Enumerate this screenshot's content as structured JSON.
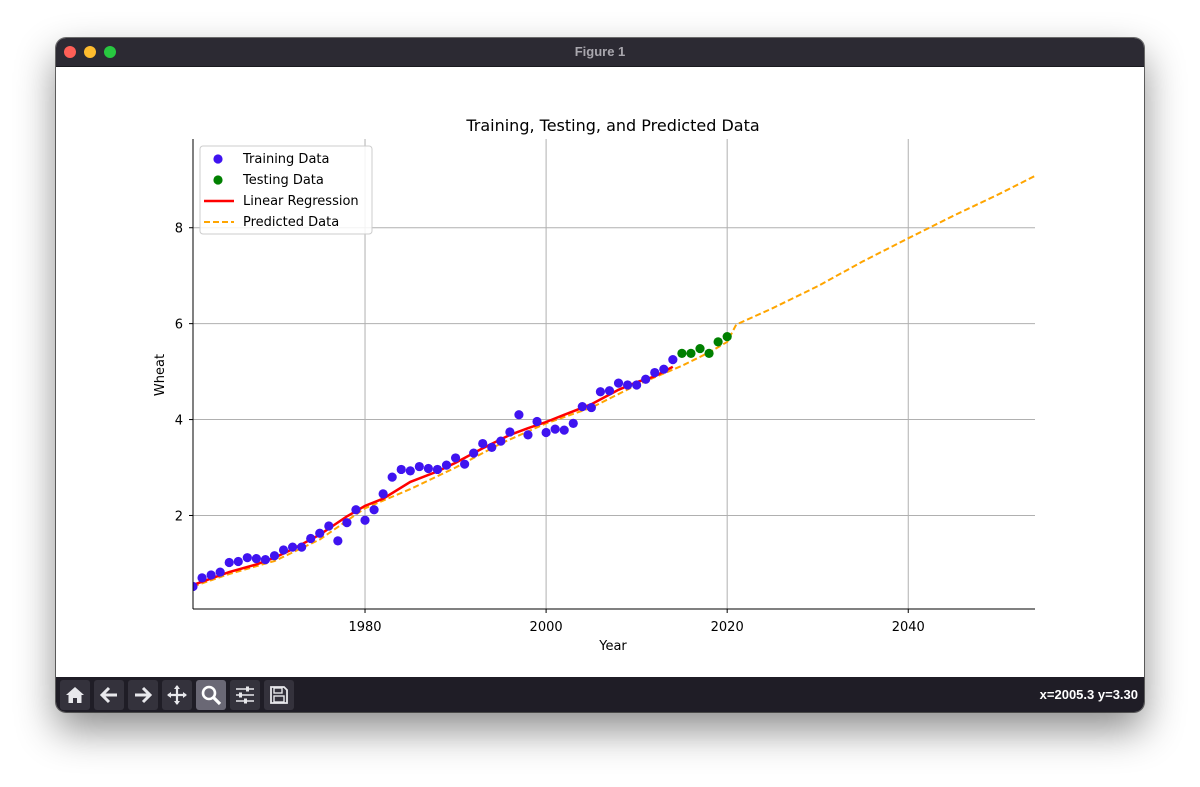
{
  "window": {
    "title": "Figure 1"
  },
  "toolbar": {
    "tools": [
      {
        "name": "home-icon"
      },
      {
        "name": "back-arrow-icon"
      },
      {
        "name": "forward-arrow-icon"
      },
      {
        "name": "pan-icon"
      },
      {
        "name": "zoom-icon",
        "active": true
      },
      {
        "name": "configure-subplots-icon"
      },
      {
        "name": "save-icon"
      }
    ],
    "coords": "x=2005.3 y=3.30"
  },
  "colors": {
    "training": "#3f13f0",
    "testing": "#008000",
    "regression": "#ff0000",
    "predicted": "#ffa500"
  },
  "chart_data": {
    "type": "scatter",
    "title": "Training, Testing, and Predicted Data",
    "xlabel": "Year",
    "ylabel": "Wheat",
    "xlim": [
      1961,
      2054
    ],
    "ylim": [
      0.05,
      9.85
    ],
    "xticks": [
      1980,
      2000,
      2020,
      2040
    ],
    "yticks": [
      2,
      4,
      6,
      8
    ],
    "grid": true,
    "legend_position": "top-left",
    "legend": [
      "Training Data",
      "Testing Data",
      "Linear Regression",
      "Predicted Data"
    ],
    "series": [
      {
        "name": "Training Data",
        "kind": "scatter",
        "color": "#3f13f0",
        "x": [
          1961,
          1962,
          1963,
          1964,
          1965,
          1966,
          1967,
          1968,
          1969,
          1970,
          1971,
          1972,
          1973,
          1974,
          1975,
          1976,
          1977,
          1978,
          1979,
          1980,
          1981,
          1982,
          1983,
          1984,
          1985,
          1986,
          1987,
          1988,
          1989,
          1990,
          1991,
          1992,
          1993,
          1994,
          1995,
          1996,
          1997,
          1998,
          1999,
          2000,
          2001,
          2002,
          2003,
          2004,
          2005,
          2006,
          2007,
          2008,
          2009,
          2010,
          2011,
          2012,
          2013,
          2014
        ],
        "y": [
          0.52,
          0.7,
          0.76,
          0.82,
          1.02,
          1.04,
          1.12,
          1.1,
          1.08,
          1.16,
          1.28,
          1.34,
          1.34,
          1.52,
          1.63,
          1.78,
          1.47,
          1.85,
          2.12,
          1.9,
          2.12,
          2.45,
          2.8,
          2.96,
          2.93,
          3.02,
          2.98,
          2.96,
          3.05,
          3.2,
          3.07,
          3.3,
          3.5,
          3.42,
          3.55,
          3.74,
          4.1,
          3.68,
          3.96,
          3.73,
          3.8,
          3.78,
          3.92,
          4.27,
          4.25,
          4.58,
          4.6,
          4.76,
          4.72,
          4.72,
          4.84,
          4.98,
          5.05,
          5.25
        ]
      },
      {
        "name": "Testing Data",
        "kind": "scatter",
        "color": "#008000",
        "x": [
          2015,
          2016,
          2017,
          2018,
          2019,
          2020
        ],
        "y": [
          5.38,
          5.38,
          5.48,
          5.38,
          5.62,
          5.73
        ]
      },
      {
        "name": "Linear Regression",
        "kind": "line",
        "color": "#ff0000",
        "x": [
          1961,
          1965,
          1968,
          1970,
          1972,
          1975,
          1978,
          1980,
          1982,
          1985,
          1988,
          1990,
          1993,
          1996,
          1998,
          2000,
          2002,
          2005,
          2008,
          2010,
          2012,
          2014
        ],
        "y": [
          0.55,
          0.82,
          0.98,
          1.12,
          1.3,
          1.6,
          1.98,
          2.2,
          2.35,
          2.7,
          2.92,
          3.1,
          3.4,
          3.68,
          3.82,
          3.95,
          4.1,
          4.32,
          4.62,
          4.78,
          4.9,
          5.1
        ]
      },
      {
        "name": "Predicted Data",
        "kind": "line",
        "color": "#ffa500",
        "x": [
          1961,
          1965,
          1970,
          1975,
          1980,
          1985,
          1990,
          1995,
          2000,
          2005,
          2010,
          2015,
          2018,
          2020,
          2021,
          2025,
          2030,
          2035,
          2040,
          2045,
          2050,
          2054
        ],
        "y": [
          0.52,
          0.78,
          1.05,
          1.5,
          2.15,
          2.55,
          3.0,
          3.5,
          3.92,
          4.25,
          4.72,
          5.12,
          5.4,
          5.62,
          5.98,
          6.32,
          6.78,
          7.3,
          7.78,
          8.25,
          8.7,
          9.08
        ]
      }
    ]
  }
}
